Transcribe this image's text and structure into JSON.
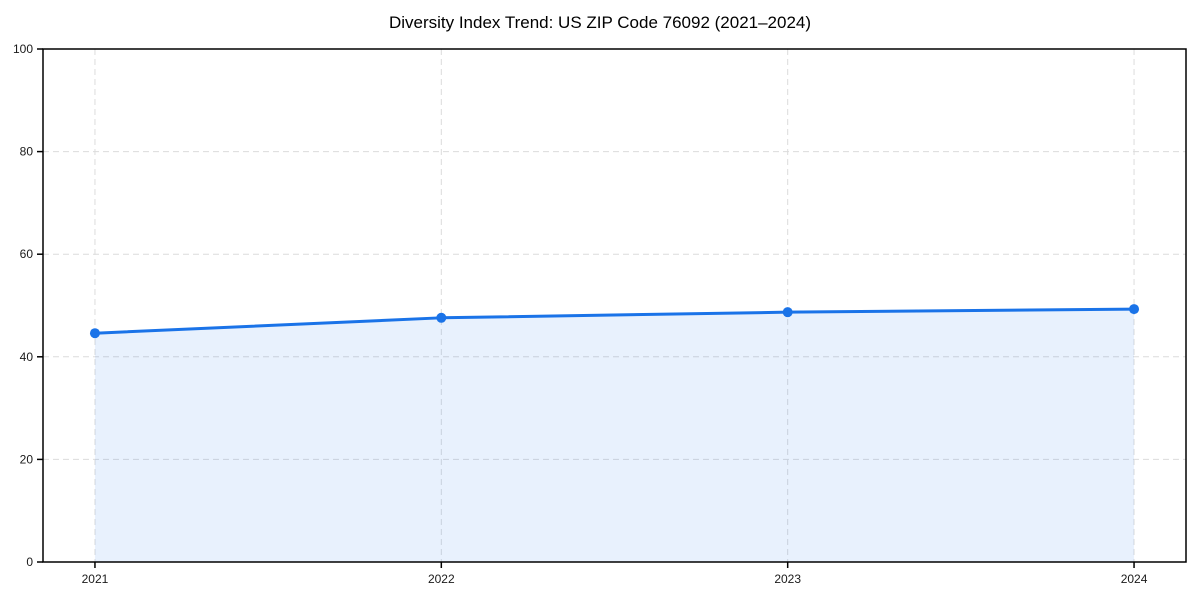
{
  "chart_data": {
    "type": "line",
    "title": "Diversity Index Trend: US ZIP Code 76092 (2021–2024)",
    "x": [
      2021,
      2022,
      2023,
      2024
    ],
    "xticks": [
      "2021",
      "2022",
      "2023",
      "2024"
    ],
    "series": [
      {
        "name": "Diversity Index",
        "values": [
          44.6,
          47.6,
          48.7,
          49.3
        ]
      }
    ],
    "ylim": [
      0,
      100
    ],
    "yticks": [
      0,
      20,
      40,
      60,
      80,
      100
    ],
    "x_margin_fraction": 0.05,
    "grid": "dashed",
    "legend_position": "none",
    "area_fill": true,
    "marker": "circle",
    "colors": {
      "line": "#1a73e8",
      "marker": "#1a73e8",
      "area_fill": "rgba(26,115,232,0.10)",
      "grid": "#dcdcdc",
      "spine": "#000000",
      "tick_label": "#1a1a1a",
      "title": "#000000",
      "background": "#ffffff"
    }
  }
}
